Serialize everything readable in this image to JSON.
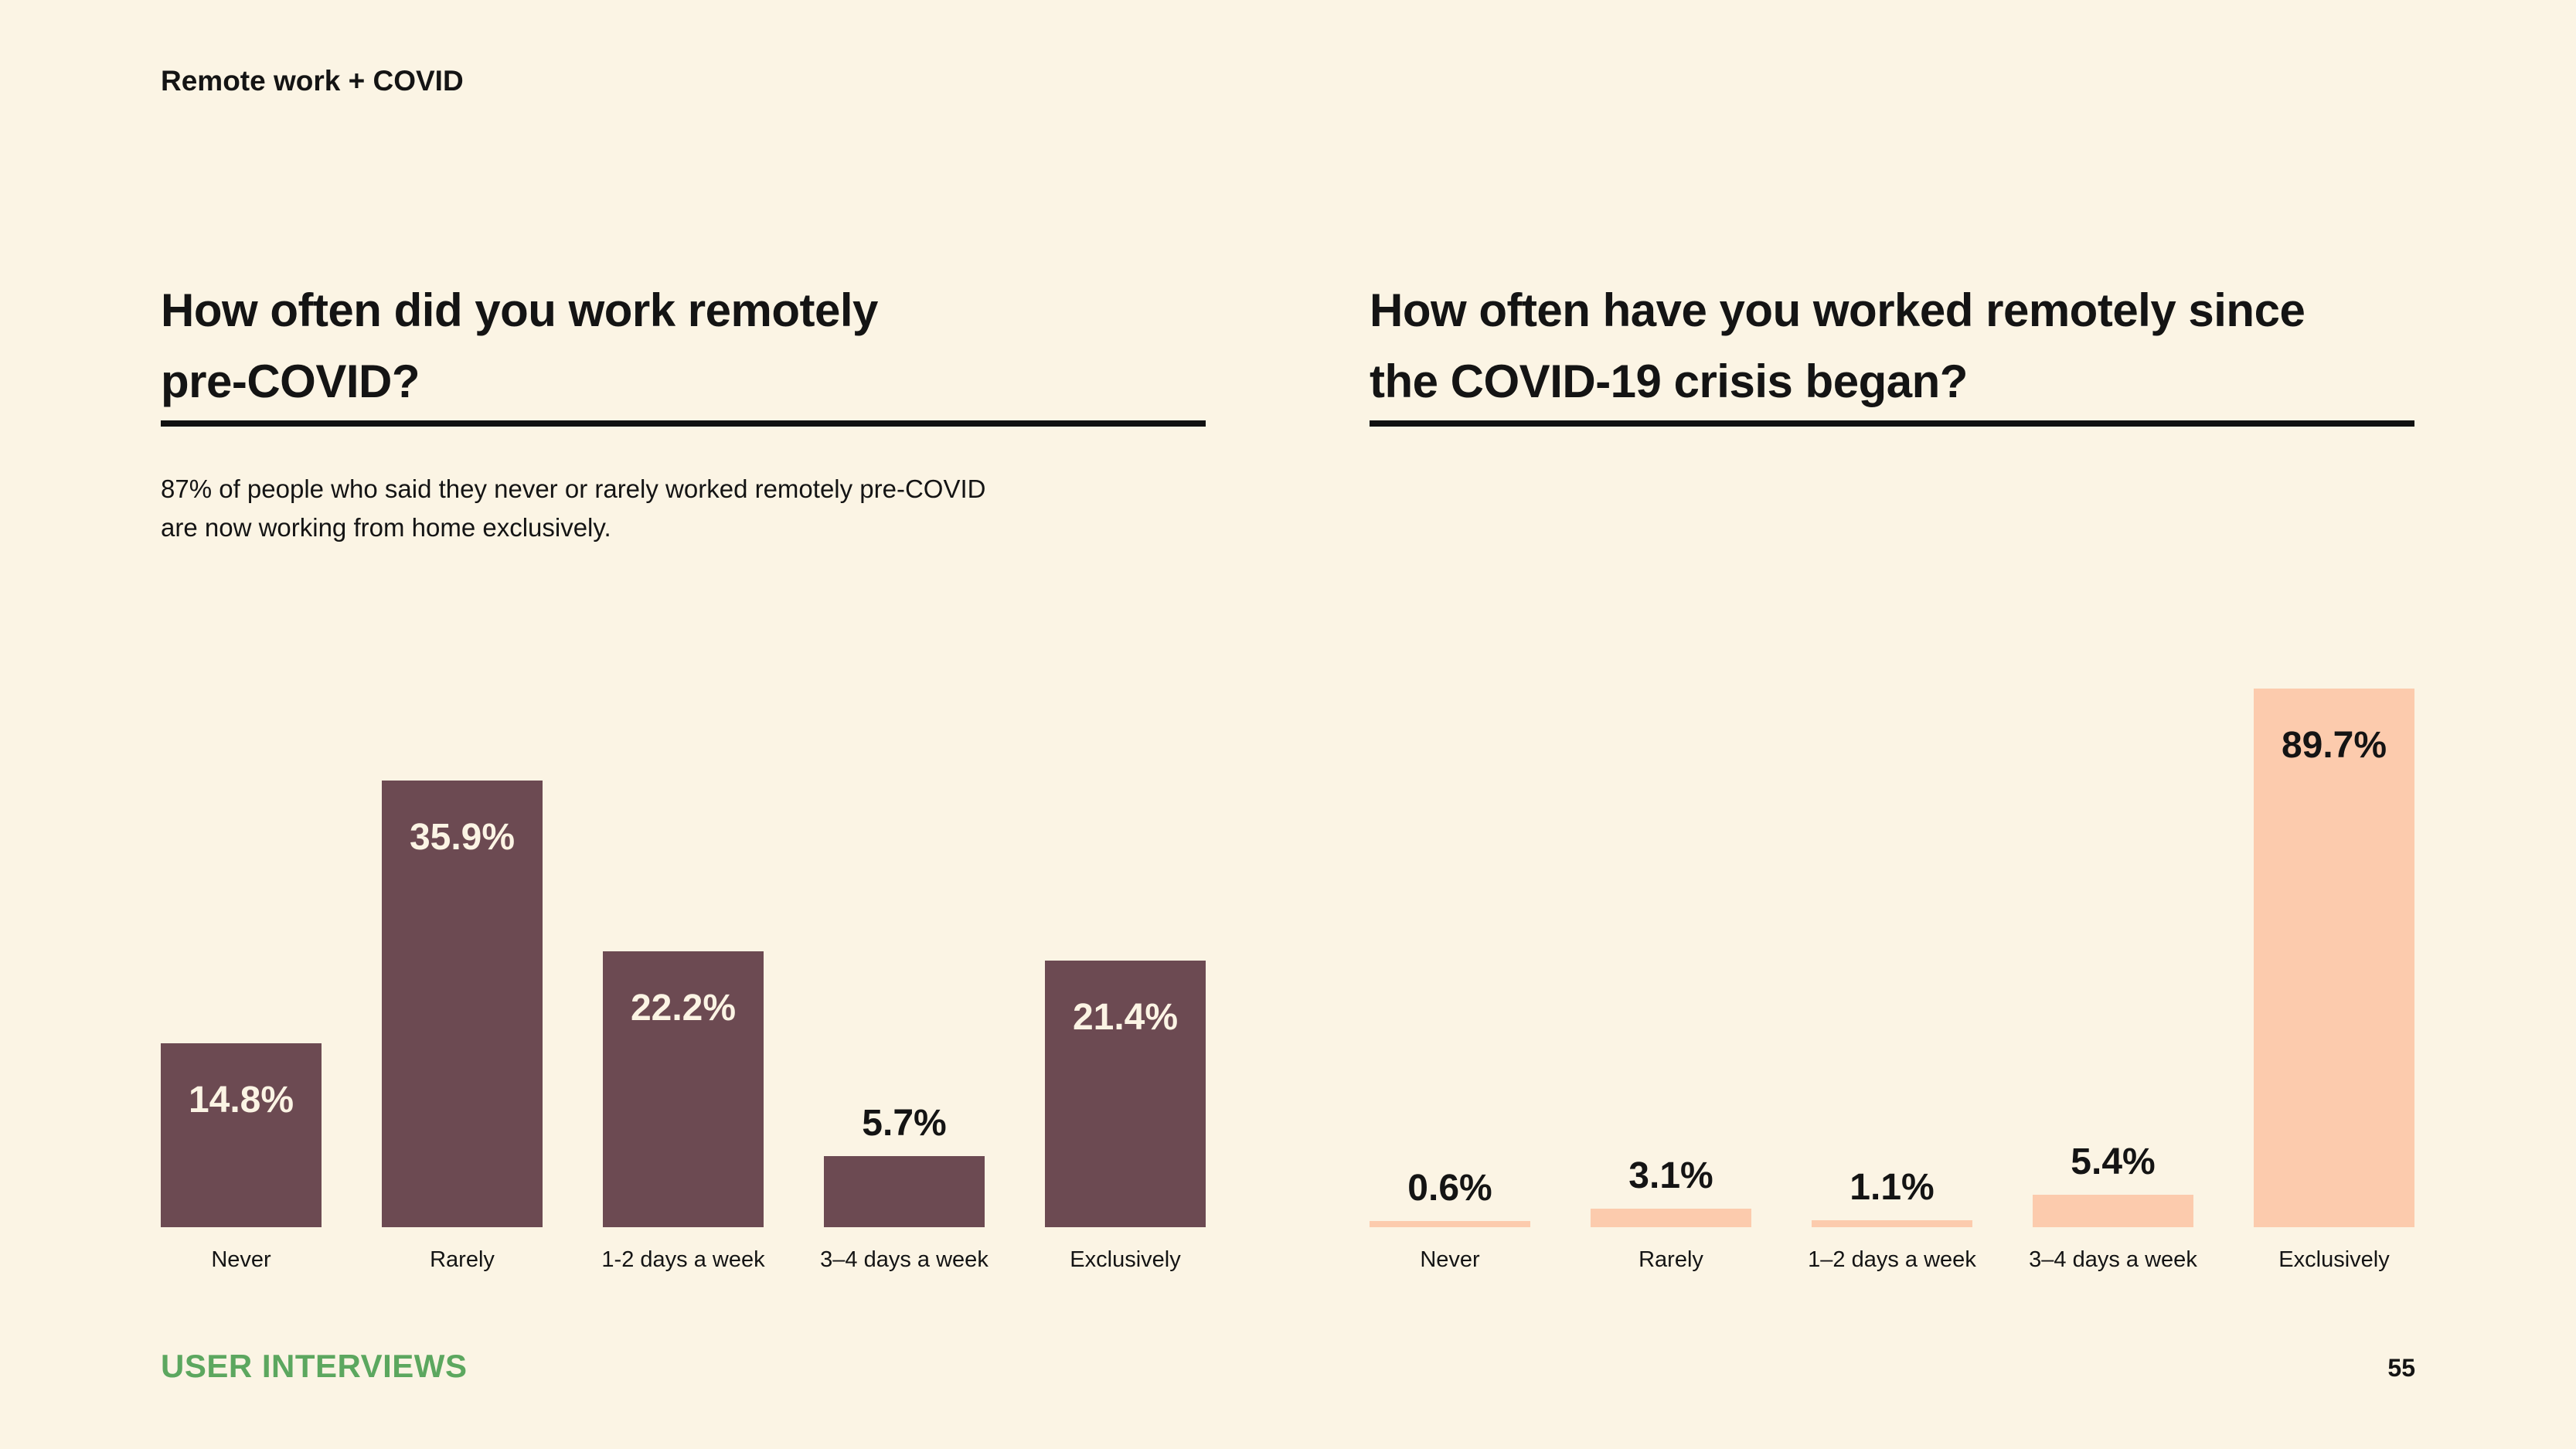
{
  "header": {
    "title": "Remote work + COVID"
  },
  "footer": {
    "brand": "USER INTERVIEWS",
    "page_number": "55"
  },
  "colors": {
    "background": "#FBF4E4",
    "text": "#141414",
    "divider": "#101010",
    "brand_green": "#5CA75F",
    "left_bar": "#6C4A52",
    "right_bar": "#FCCBAD"
  },
  "chart_data": [
    {
      "type": "bar",
      "title_lines": [
        "How often did you work remotely",
        "pre-COVID?"
      ],
      "subtitle_lines": [
        "87% of people who said they never or rarely worked remotely pre-COVID",
        "are now working from home exclusively."
      ],
      "categories": [
        "Never",
        "Rarely",
        "1-2 days a week",
        "3–4 days a week",
        "Exclusively"
      ],
      "values": [
        14.8,
        35.9,
        22.2,
        5.7,
        21.4
      ],
      "value_labels": [
        "14.8%",
        "35.9%",
        "22.2%",
        "5.7%",
        "21.4%"
      ],
      "label_placement": [
        "inside",
        "inside",
        "inside",
        "above",
        "inside"
      ],
      "bar_color": "#6C4A52",
      "inside_label_color": "#FBF4E4",
      "above_label_color": "#141414",
      "xlabel": "",
      "ylabel": "",
      "ylim": [
        0,
        35.9
      ],
      "grid": false,
      "legend": "none"
    },
    {
      "type": "bar",
      "title_lines": [
        "How often have you worked remotely since",
        "the COVID-19 crisis began?"
      ],
      "subtitle_lines": [],
      "categories": [
        "Never",
        "Rarely",
        "1–2 days a week",
        "3–4 days a week",
        "Exclusively"
      ],
      "values": [
        0.6,
        3.1,
        1.1,
        5.4,
        89.7
      ],
      "value_labels": [
        "0.6%",
        "3.1%",
        "1.1%",
        "5.4%",
        "89.7%"
      ],
      "label_placement": [
        "above",
        "above",
        "above",
        "above",
        "inside"
      ],
      "bar_color": "#FCCBAD",
      "inside_label_color": "#141414",
      "above_label_color": "#141414",
      "xlabel": "",
      "ylabel": "",
      "ylim": [
        0,
        89.7
      ],
      "grid": false,
      "legend": "none"
    }
  ]
}
